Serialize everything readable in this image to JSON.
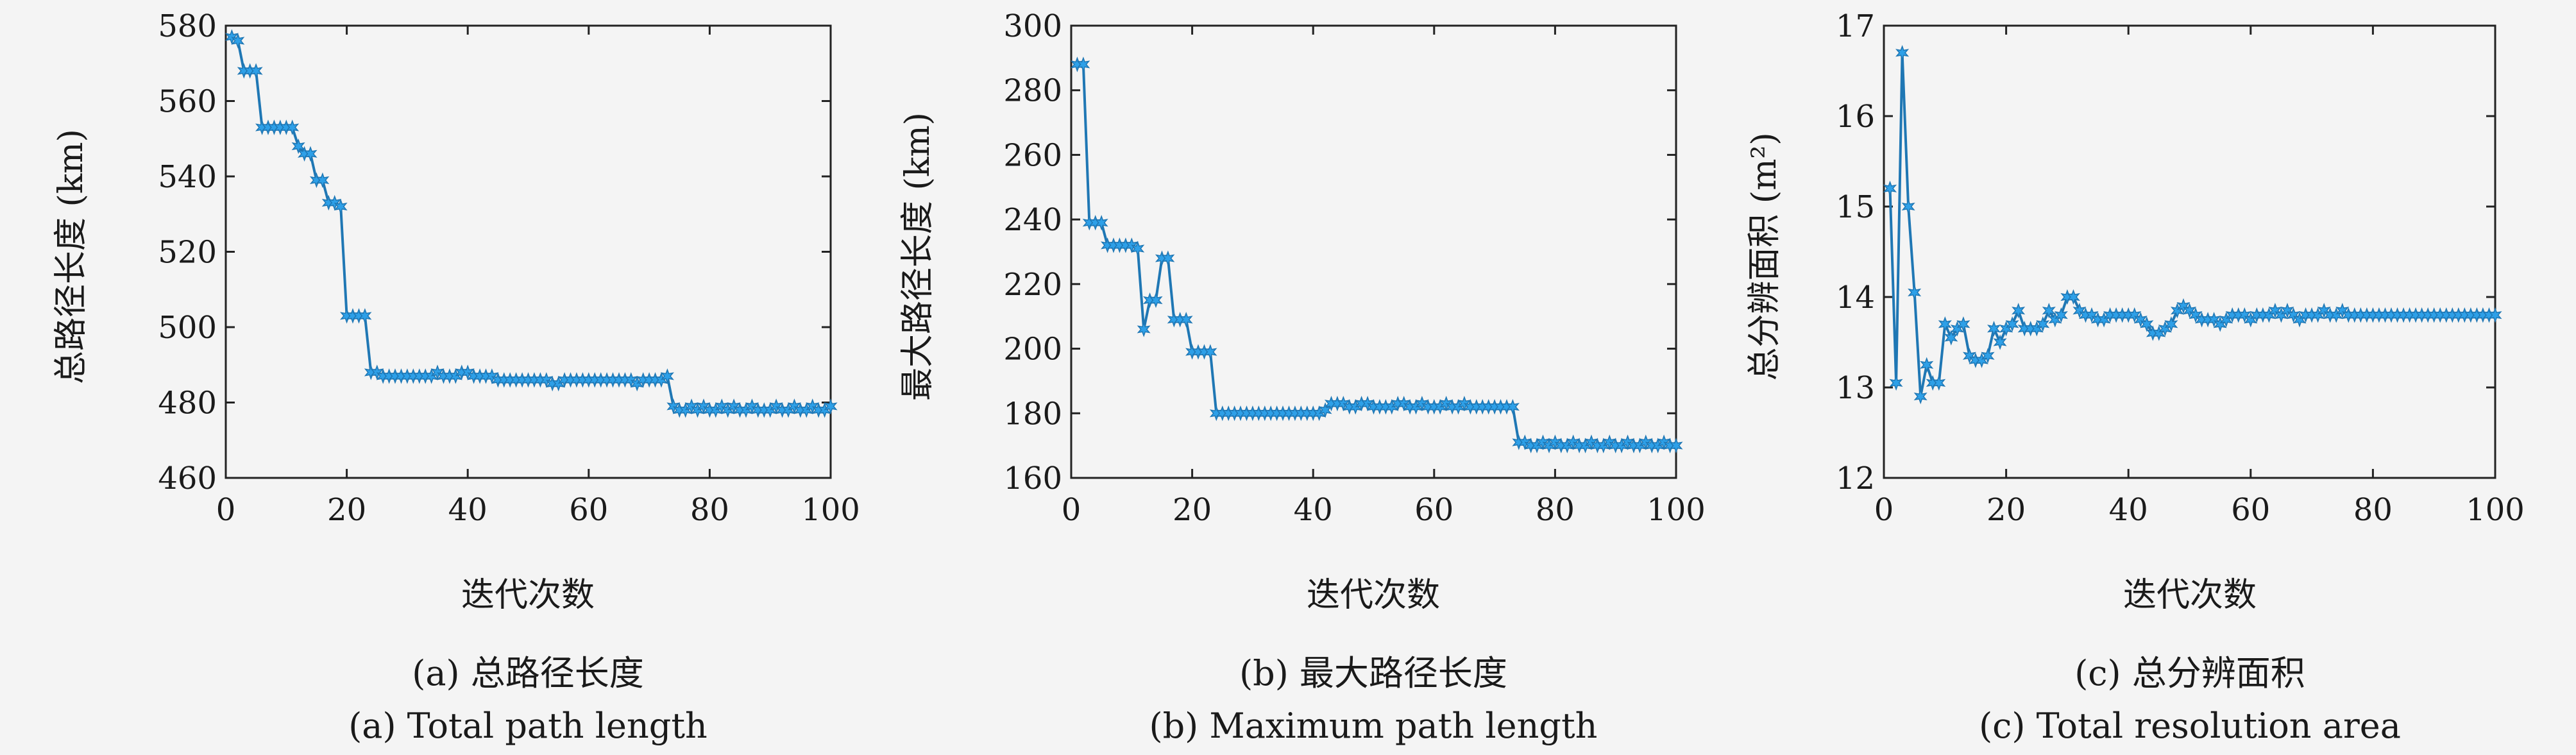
{
  "colors": {
    "line": "#1f77b4",
    "marker": "#2ea0e8",
    "axis": "#222222",
    "background": "#f4f4f4"
  },
  "chart_data": [
    {
      "type": "line",
      "ylabel": "总路径长度 (km)",
      "xlabel": "迭代次数",
      "caption_zh": "(a) 总路径长度",
      "caption_en": "(a) Total path length",
      "xlim": [
        0,
        100
      ],
      "ylim": [
        460,
        580
      ],
      "xticks": [
        0,
        20,
        40,
        60,
        80,
        100
      ],
      "yticks": [
        460,
        480,
        500,
        520,
        540,
        560,
        580
      ],
      "marker": "star",
      "x": [
        1,
        2,
        3,
        4,
        5,
        6,
        7,
        8,
        9,
        10,
        11,
        12,
        13,
        14,
        15,
        16,
        17,
        18,
        19,
        20,
        21,
        22,
        23,
        24,
        25,
        26,
        27,
        28,
        29,
        30,
        31,
        32,
        33,
        34,
        35,
        36,
        37,
        38,
        39,
        40,
        41,
        42,
        43,
        44,
        45,
        46,
        47,
        48,
        49,
        50,
        51,
        52,
        53,
        54,
        55,
        56,
        57,
        58,
        59,
        60,
        61,
        62,
        63,
        64,
        65,
        66,
        67,
        68,
        69,
        70,
        71,
        72,
        73,
        74,
        75,
        76,
        77,
        78,
        79,
        80,
        81,
        82,
        83,
        84,
        85,
        86,
        87,
        88,
        89,
        90,
        91,
        92,
        93,
        94,
        95,
        96,
        97,
        98,
        99,
        100
      ],
      "values": [
        577,
        576,
        568,
        568,
        568,
        553,
        553,
        553,
        553,
        553,
        553,
        548,
        546,
        546,
        539,
        539,
        533,
        533,
        532,
        503,
        503,
        503,
        503,
        488,
        488,
        487,
        487,
        487,
        487,
        487,
        487,
        487,
        487,
        487,
        488,
        487,
        487,
        487,
        488,
        488,
        487,
        487,
        487,
        487,
        486,
        486,
        486,
        486,
        486,
        486,
        486,
        486,
        486,
        485,
        485,
        486,
        486,
        486,
        486,
        486,
        486,
        486,
        486,
        486,
        486,
        486,
        486,
        485,
        486,
        486,
        486,
        486,
        487,
        479,
        478,
        478,
        479,
        478,
        479,
        478,
        478,
        479,
        478,
        479,
        478,
        478,
        479,
        478,
        478,
        478,
        479,
        478,
        478,
        479,
        478,
        478,
        479,
        478,
        478,
        479
      ]
    },
    {
      "type": "line",
      "ylabel": "最大路径长度 (km)",
      "xlabel": "迭代次数",
      "caption_zh": "(b) 最大路径长度",
      "caption_en": "(b) Maximum path length",
      "xlim": [
        0,
        100
      ],
      "ylim": [
        160,
        300
      ],
      "xticks": [
        0,
        20,
        40,
        60,
        80,
        100
      ],
      "yticks": [
        160,
        180,
        200,
        220,
        240,
        260,
        280,
        300
      ],
      "marker": "star",
      "x": [
        1,
        2,
        3,
        4,
        5,
        6,
        7,
        8,
        9,
        10,
        11,
        12,
        13,
        14,
        15,
        16,
        17,
        18,
        19,
        20,
        21,
        22,
        23,
        24,
        25,
        26,
        27,
        28,
        29,
        30,
        31,
        32,
        33,
        34,
        35,
        36,
        37,
        38,
        39,
        40,
        41,
        42,
        43,
        44,
        45,
        46,
        47,
        48,
        49,
        50,
        51,
        52,
        53,
        54,
        55,
        56,
        57,
        58,
        59,
        60,
        61,
        62,
        63,
        64,
        65,
        66,
        67,
        68,
        69,
        70,
        71,
        72,
        73,
        74,
        75,
        76,
        77,
        78,
        79,
        80,
        81,
        82,
        83,
        84,
        85,
        86,
        87,
        88,
        89,
        90,
        91,
        92,
        93,
        94,
        95,
        96,
        97,
        98,
        99,
        100
      ],
      "values": [
        288,
        288,
        239,
        239,
        239,
        232,
        232,
        232,
        232,
        232,
        231,
        206,
        215,
        215,
        228,
        228,
        209,
        209,
        209,
        199,
        199,
        199,
        199,
        180,
        180,
        180,
        180,
        180,
        180,
        180,
        180,
        180,
        180,
        180,
        180,
        180,
        180,
        180,
        180,
        180,
        180,
        181,
        183,
        183,
        183,
        182,
        182,
        183,
        183,
        182,
        182,
        182,
        182,
        183,
        183,
        182,
        182,
        183,
        182,
        182,
        182,
        183,
        182,
        182,
        183,
        182,
        182,
        182,
        182,
        182,
        182,
        182,
        182,
        171,
        171,
        170,
        170,
        171,
        170,
        171,
        170,
        170,
        171,
        170,
        170,
        171,
        170,
        170,
        171,
        170,
        170,
        171,
        170,
        170,
        171,
        170,
        170,
        171,
        170,
        170
      ]
    },
    {
      "type": "line",
      "ylabel": "总分辨面积 (m²)",
      "xlabel": "迭代次数",
      "caption_zh": "(c) 总分辨面积",
      "caption_en": "(c) Total resolution area",
      "xlim": [
        0,
        100
      ],
      "ylim": [
        12,
        17
      ],
      "xticks": [
        0,
        20,
        40,
        60,
        80,
        100
      ],
      "yticks": [
        12,
        13,
        14,
        15,
        16,
        17
      ],
      "marker": "star",
      "x": [
        1,
        2,
        3,
        4,
        5,
        6,
        7,
        8,
        9,
        10,
        11,
        12,
        13,
        14,
        15,
        16,
        17,
        18,
        19,
        20,
        21,
        22,
        23,
        24,
        25,
        26,
        27,
        28,
        29,
        30,
        31,
        32,
        33,
        34,
        35,
        36,
        37,
        38,
        39,
        40,
        41,
        42,
        43,
        44,
        45,
        46,
        47,
        48,
        49,
        50,
        51,
        52,
        53,
        54,
        55,
        56,
        57,
        58,
        59,
        60,
        61,
        62,
        63,
        64,
        65,
        66,
        67,
        68,
        69,
        70,
        71,
        72,
        73,
        74,
        75,
        76,
        77,
        78,
        79,
        80,
        81,
        82,
        83,
        84,
        85,
        86,
        87,
        88,
        89,
        90,
        91,
        92,
        93,
        94,
        95,
        96,
        97,
        98,
        99,
        100
      ],
      "values": [
        15.2,
        13.05,
        16.7,
        15.0,
        14.05,
        12.9,
        13.25,
        13.05,
        13.05,
        13.7,
        13.55,
        13.65,
        13.7,
        13.35,
        13.3,
        13.3,
        13.35,
        13.65,
        13.5,
        13.65,
        13.7,
        13.85,
        13.65,
        13.65,
        13.65,
        13.7,
        13.85,
        13.75,
        13.8,
        14.0,
        14.0,
        13.85,
        13.8,
        13.8,
        13.75,
        13.75,
        13.8,
        13.8,
        13.8,
        13.8,
        13.8,
        13.75,
        13.7,
        13.6,
        13.6,
        13.65,
        13.7,
        13.85,
        13.9,
        13.85,
        13.8,
        13.75,
        13.75,
        13.75,
        13.7,
        13.75,
        13.8,
        13.8,
        13.8,
        13.75,
        13.8,
        13.8,
        13.8,
        13.85,
        13.8,
        13.85,
        13.8,
        13.75,
        13.8,
        13.8,
        13.8,
        13.85,
        13.8,
        13.8,
        13.85,
        13.8,
        13.8,
        13.8,
        13.8,
        13.8,
        13.8,
        13.8,
        13.8,
        13.8,
        13.8,
        13.8,
        13.8,
        13.8,
        13.8,
        13.8,
        13.8,
        13.8,
        13.8,
        13.8,
        13.8,
        13.8,
        13.8,
        13.8,
        13.8,
        13.8
      ]
    }
  ]
}
